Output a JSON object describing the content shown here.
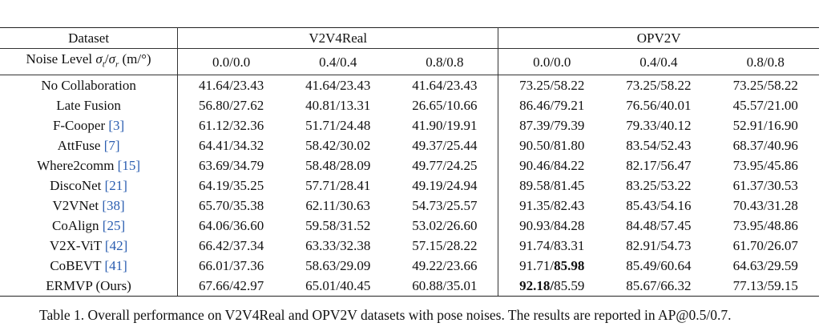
{
  "header": {
    "dataset_label": "Dataset",
    "group1": "V2V4Real",
    "group2": "OPV2V",
    "noise_label_prefix": "Noise Level ",
    "noise_label_suffix": " (m/°)",
    "noise_levels": [
      "0.0/0.0",
      "0.4/0.4",
      "0.8/0.8",
      "0.0/0.0",
      "0.4/0.4",
      "0.8/0.8"
    ]
  },
  "rows": [
    {
      "method": "No Collaboration",
      "cite": "",
      "bold_method": false,
      "values": [
        "41.64/23.43",
        "41.64/23.43",
        "41.64/23.43",
        "73.25/58.22",
        "73.25/58.22",
        "73.25/58.22"
      ]
    },
    {
      "method": "Late Fusion",
      "cite": "",
      "bold_method": false,
      "values": [
        "56.80/27.62",
        "40.81/13.31",
        "26.65/10.66",
        "86.46/79.21",
        "76.56/40.01",
        "45.57/21.00"
      ]
    },
    {
      "method": "F-Cooper",
      "cite": "3",
      "bold_method": false,
      "values": [
        "61.12/32.36",
        "51.71/24.48",
        "41.90/19.91",
        "87.39/79.39",
        "79.33/40.12",
        "52.91/16.90"
      ]
    },
    {
      "method": "AttFuse",
      "cite": "7",
      "bold_method": false,
      "values": [
        "64.41/34.32",
        "58.42/30.02",
        "49.37/25.44",
        "90.50/81.80",
        "83.54/52.43",
        "68.37/40.96"
      ]
    },
    {
      "method": "Where2comm",
      "cite": "15",
      "bold_method": false,
      "values": [
        "63.69/34.79",
        "58.48/28.09",
        "49.77/24.25",
        "90.46/84.22",
        "82.17/56.47",
        "73.95/45.86"
      ]
    },
    {
      "method": "DiscoNet",
      "cite": "21",
      "bold_method": false,
      "values": [
        "64.19/35.25",
        "57.71/28.41",
        "49.19/24.94",
        "89.58/81.45",
        "83.25/53.22",
        "61.37/30.53"
      ]
    },
    {
      "method": "V2VNet",
      "cite": "38",
      "bold_method": false,
      "values": [
        "65.70/35.38",
        "62.11/30.63",
        "54.73/25.57",
        "91.35/82.43",
        "85.43/54.16",
        "70.43/31.28"
      ]
    },
    {
      "method": "CoAlign",
      "cite": "25",
      "bold_method": false,
      "values": [
        "64.06/36.60",
        "59.58/31.52",
        "53.02/26.60",
        "90.93/84.28",
        "84.48/57.45",
        "73.95/48.86"
      ]
    },
    {
      "method": "V2X-ViT",
      "cite": "42",
      "bold_method": false,
      "values": [
        "66.42/37.34",
        "63.33/32.38",
        "57.15/28.22",
        "91.74/83.31",
        "82.91/54.73",
        "61.70/26.07"
      ]
    },
    {
      "method": "CoBEVT",
      "cite": "41",
      "bold_method": false,
      "values": [
        "66.01/37.36",
        "58.63/29.09",
        "49.22/23.66",
        "91.71/",
        "85.49/60.64",
        "64.63/29.59"
      ],
      "bold_tail_col3": "85.98"
    },
    {
      "method": "ERMVP (Ours)",
      "cite": "",
      "bold_method": true,
      "values": [
        "67.66/42.97",
        "65.01/40.45",
        "60.88/35.01",
        "92.18/",
        "85.67/66.32",
        "77.13/59.15"
      ],
      "plain_tail_col3": "85.59"
    }
  ],
  "caption": "Table 1. Overall performance on V2V4Real and OPV2V datasets with pose noises. The results are reported in AP@0.5/0.7."
}
